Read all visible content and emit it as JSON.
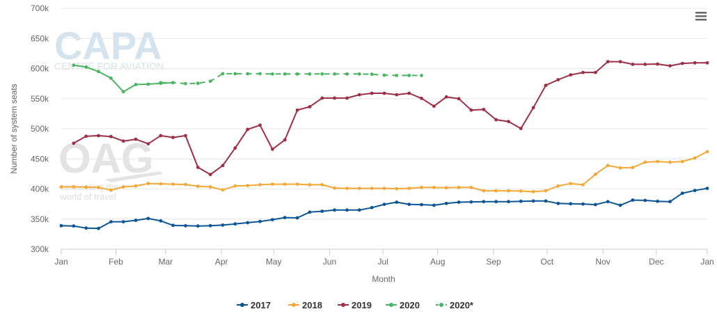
{
  "watermarks": {
    "capa_title": "CAPA",
    "capa_subtitle": "CENTRE FOR AVIATION",
    "oag_title": "OAG",
    "oag_tagline_1": "connecting the",
    "oag_tagline_2": "world of travel"
  },
  "menu_icon": "hamburger-menu-icon",
  "chart_data": {
    "type": "line",
    "ylabel": "Number of system seats",
    "xlabel": "Month",
    "ylim": [
      300000,
      700000
    ],
    "yticks": [
      {
        "value": 300000,
        "label": "300k"
      },
      {
        "value": 350000,
        "label": "350k"
      },
      {
        "value": 400000,
        "label": "400k"
      },
      {
        "value": 450000,
        "label": "450k"
      },
      {
        "value": 500000,
        "label": "500k"
      },
      {
        "value": 550000,
        "label": "550k"
      },
      {
        "value": 600000,
        "label": "600k"
      },
      {
        "value": 650000,
        "label": "650k"
      },
      {
        "value": 700000,
        "label": "700k"
      }
    ],
    "x_axis": {
      "unit": "week of year",
      "range": [
        1,
        53
      ],
      "ticks": [
        {
          "x": 1,
          "label": "Jan"
        },
        {
          "x": 5.4,
          "label": "Feb"
        },
        {
          "x": 9.4,
          "label": "Mar"
        },
        {
          "x": 13.9,
          "label": "Apr"
        },
        {
          "x": 18.1,
          "label": "May"
        },
        {
          "x": 22.6,
          "label": "Jun"
        },
        {
          "x": 26.9,
          "label": "Jul"
        },
        {
          "x": 31.3,
          "label": "Aug"
        },
        {
          "x": 35.8,
          "label": "Sep"
        },
        {
          "x": 40.1,
          "label": "Oct"
        },
        {
          "x": 44.6,
          "label": "Nov"
        },
        {
          "x": 48.9,
          "label": "Dec"
        },
        {
          "x": 53,
          "label": "Jan"
        }
      ]
    },
    "grid": "horizontal",
    "legend_position": "bottom-center",
    "series": [
      {
        "name": "2017",
        "color": "#0a5596",
        "dash": false,
        "x_start": 1,
        "values": [
          339000,
          338500,
          335000,
          334500,
          345500,
          345500,
          348000,
          351000,
          347000,
          339500,
          339000,
          338500,
          339000,
          340000,
          342000,
          344000,
          346000,
          349000,
          352500,
          352000,
          361500,
          363000,
          365000,
          365000,
          365000,
          369000,
          374500,
          378000,
          374500,
          374000,
          373000,
          376000,
          378000,
          378500,
          379000,
          379000,
          379000,
          379500,
          380000,
          380000,
          376000,
          375500,
          375000,
          374000,
          379000,
          373000,
          381500,
          381000,
          379500,
          379000,
          393000,
          397500,
          401000
        ]
      },
      {
        "name": "2018",
        "color": "#f5a736",
        "dash": false,
        "x_start": 1,
        "values": [
          403500,
          403500,
          403000,
          402500,
          398000,
          403500,
          405000,
          409000,
          408500,
          408000,
          407500,
          404500,
          403500,
          398500,
          405000,
          405500,
          407000,
          408000,
          408000,
          408000,
          407000,
          407000,
          401500,
          401000,
          401000,
          401000,
          401000,
          400500,
          401000,
          402500,
          402500,
          402000,
          402500,
          402500,
          397000,
          397000,
          397000,
          396500,
          395500,
          397000,
          405000,
          409000,
          407000,
          424500,
          439000,
          435000,
          435500,
          444500,
          445500,
          444500,
          445500,
          451500,
          462000
        ]
      },
      {
        "name": "2019",
        "color": "#9e2e44",
        "dash": false,
        "x_start": 2,
        "values": [
          476000,
          487500,
          488500,
          487000,
          479500,
          482500,
          475000,
          488500,
          485500,
          488500,
          436000,
          424000,
          439000,
          468000,
          499000,
          506000,
          466000,
          481500,
          531000,
          536500,
          551000,
          551000,
          551000,
          556500,
          559000,
          559000,
          556500,
          559000,
          550500,
          537500,
          553000,
          550000,
          531000,
          532000,
          515000,
          512000,
          500500,
          535000,
          572000,
          581500,
          589500,
          593500,
          593500,
          611500,
          611500,
          607000,
          607000,
          607500,
          604500,
          608500,
          609500,
          609500
        ]
      },
      {
        "name": "2020",
        "color": "#48b560",
        "dash": false,
        "x_start": 2,
        "values": [
          605500,
          602500,
          595000,
          584000,
          561500,
          573500,
          574000,
          575500,
          576500
        ]
      },
      {
        "name": "2020*",
        "color": "#48b560",
        "dash": true,
        "x_start": 9,
        "values": [
          576500,
          576500,
          575000,
          575500,
          579000,
          591500,
          591500,
          591500,
          591500,
          591000,
          591000,
          591000,
          591000,
          591000,
          591000,
          591000,
          591000,
          590500,
          589000,
          588500,
          588500,
          588500
        ]
      }
    ]
  }
}
